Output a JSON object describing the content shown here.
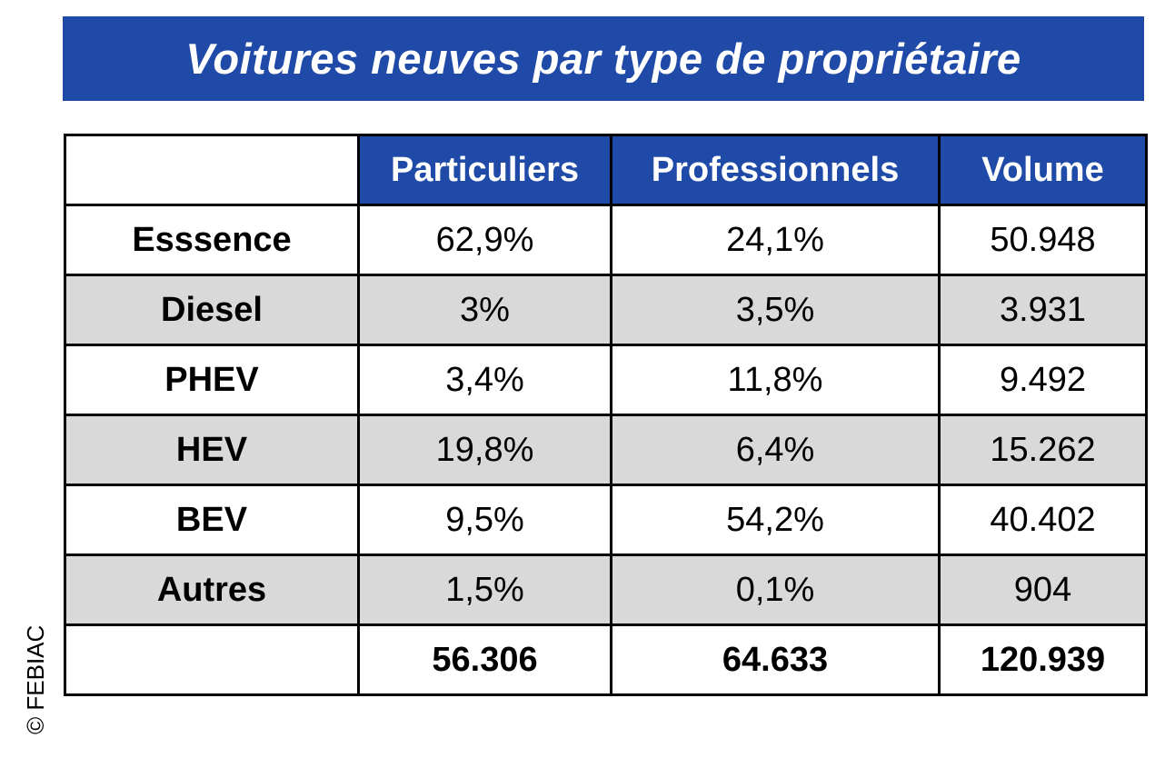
{
  "title": "Voitures neuves par type de propriétaire",
  "table": {
    "headers": [
      "",
      "Particuliers",
      "Professionnels",
      "Volume"
    ],
    "rows": [
      {
        "label": "Esssence",
        "particuliers": "62,9%",
        "professionnels": "24,1%",
        "volume": "50.948",
        "shaded": false
      },
      {
        "label": "Diesel",
        "particuliers": "3%",
        "professionnels": "3,5%",
        "volume": "3.931",
        "shaded": true
      },
      {
        "label": "PHEV",
        "particuliers": "3,4%",
        "professionnels": "11,8%",
        "volume": "9.492",
        "shaded": false
      },
      {
        "label": "HEV",
        "particuliers": "19,8%",
        "professionnels": "6,4%",
        "volume": "15.262",
        "shaded": true
      },
      {
        "label": "BEV",
        "particuliers": "9,5%",
        "professionnels": "54,2%",
        "volume": "40.402",
        "shaded": false
      },
      {
        "label": "Autres",
        "particuliers": "1,5%",
        "professionnels": "0,1%",
        "volume": "904",
        "shaded": true
      }
    ],
    "totals": {
      "label": "",
      "particuliers": "56.306",
      "professionnels": "64.633",
      "volume": "120.939"
    }
  },
  "copyright": "© FEBIAC",
  "colors": {
    "header_blue": "#1f4aa8",
    "shaded_row": "#d9d9d9"
  }
}
